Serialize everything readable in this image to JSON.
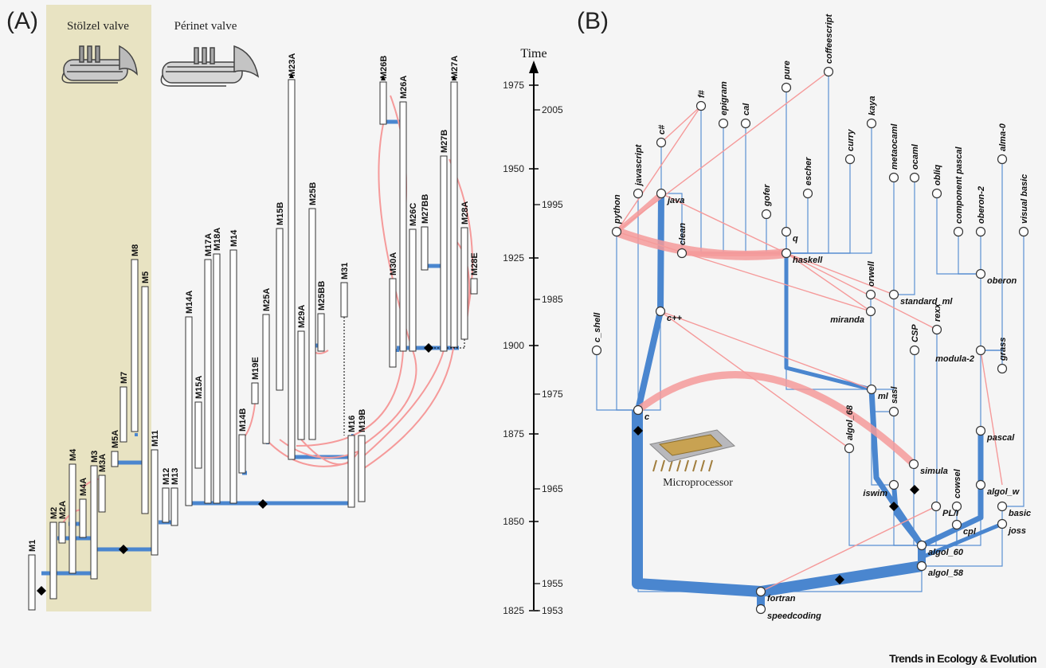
{
  "panels": {
    "a_label": "(A)",
    "b_label": "(B)"
  },
  "panel_a": {
    "stolzel_label": "Stölzel valve",
    "perinet_label": "Périnet valve",
    "models": [
      "M1",
      "M2",
      "M2A",
      "M4",
      "M4A",
      "M3",
      "M3A",
      "M5A",
      "M7",
      "M8",
      "M5",
      "M11",
      "M12",
      "M13",
      "M14A",
      "M15A",
      "M17A",
      "M18A",
      "M14",
      "M14B",
      "M19E",
      "M25A",
      "M15B",
      "M23A",
      "M29A",
      "M25B",
      "M25BB",
      "M31",
      "M16",
      "M19B",
      "M30A",
      "M26B",
      "M26A",
      "M26C",
      "M27BB",
      "M27B",
      "M27A",
      "M28A",
      "M28E"
    ]
  },
  "time_axis": {
    "title": "Time",
    "left_ticks": [
      "1975",
      "1950",
      "1925",
      "1900",
      "1875",
      "1850",
      "1825"
    ],
    "right_ticks": [
      "2005",
      "1995",
      "1985",
      "1975",
      "1965",
      "1955",
      "1953"
    ]
  },
  "panel_b": {
    "microprocessor_label": "Microprocessor",
    "languages": [
      "speedcoding",
      "fortran",
      "algol_58",
      "algol_60",
      "cpl",
      "joss",
      "basic",
      "algol_w",
      "cowsel",
      "PL/I",
      "simula",
      "iswim",
      "pascal",
      "algol_68",
      "sasl",
      "ml",
      "c",
      "c_shell",
      "c++",
      "rexx",
      "CSP",
      "miranda",
      "modula-2",
      "grass",
      "orwell",
      "standard_ml",
      "oberon",
      "python",
      "javascript",
      "java",
      "clean",
      "c#",
      "f#",
      "epigram",
      "cal",
      "gofer",
      "pure",
      "q",
      "escher",
      "haskell",
      "curry",
      "kaya",
      "coffeescript",
      "metaocaml",
      "ocaml",
      "obliq",
      "component pascal",
      "oberon-2",
      "alma-0",
      "visual basic"
    ]
  },
  "footer": "Trends in Ecology & Evolution"
}
